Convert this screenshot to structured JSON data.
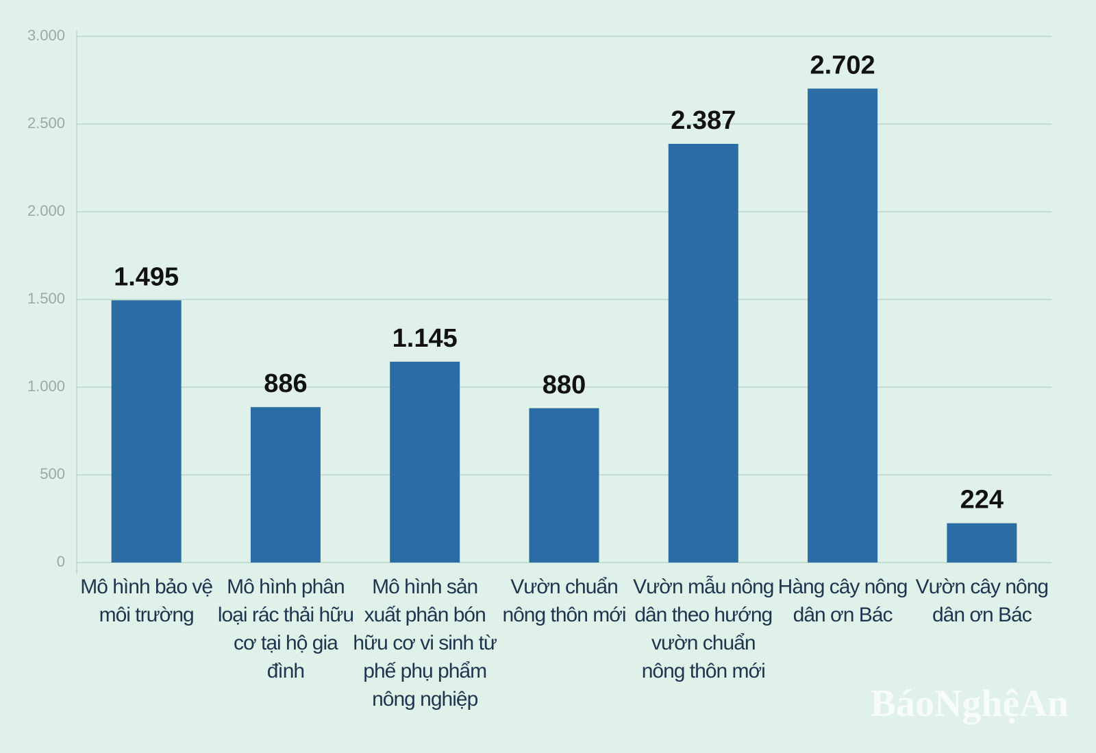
{
  "chart_data": {
    "type": "bar",
    "categories": [
      "Mô hình bảo vệ môi trường",
      "Mô hình phân loại rác thải hữu cơ tại hộ gia đình",
      "Mô hình sản xuất phân bón hữu cơ vi sinh từ phế phụ phẩm nông nghiệp",
      "Vườn chuẩn nông thôn mới",
      "Vườn mẫu nông dân theo hướng vườn chuẩn nông thôn mới",
      "Hàng cây nông dân ơn Bác",
      "Vườn cây nông dân ơn Bác"
    ],
    "values": [
      1495,
      886,
      1145,
      880,
      2387,
      2702,
      224
    ],
    "value_labels": [
      "1.495",
      "886",
      "1.145",
      "880",
      "2.387",
      "2.702",
      "224"
    ],
    "color": "#2a6ca3",
    "ylim": [
      0,
      3000
    ],
    "yticks": [
      0,
      500,
      {
        "value": 1000,
        "label": "1.000"
      },
      {
        "value": 1500,
        "label": "1.500"
      },
      {
        "value": 2000,
        "label": "2.000"
      },
      {
        "value": 2500,
        "label": "2.500"
      },
      {
        "value": 3000,
        "label": "3.000"
      }
    ],
    "grid": true,
    "watermark": "BáoNghệAn"
  }
}
